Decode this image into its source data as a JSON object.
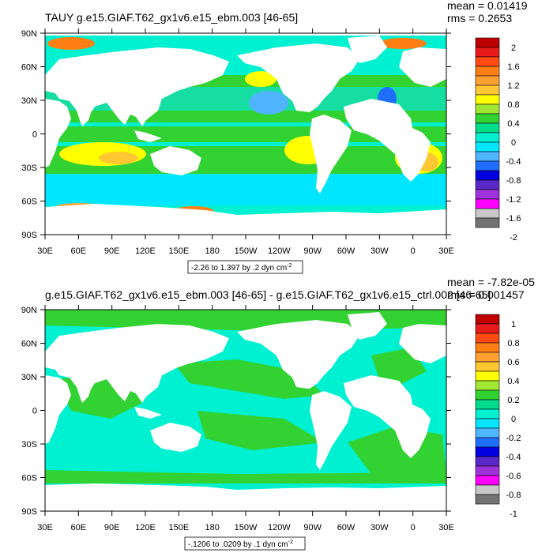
{
  "chart_data": [
    {
      "type": "heatmap",
      "title": "TAUY g.e15.GIAF.T62_gx1v6.e15_ebm.003 [46-65]",
      "stats": [
        "mean = 0.01419",
        "rms = 0.2653"
      ],
      "x_ticks": [
        "30E",
        "60E",
        "90E",
        "120E",
        "150E",
        "180",
        "150W",
        "120W",
        "90W",
        "60W",
        "30W",
        "0",
        "30E"
      ],
      "y_ticks": [
        "90N",
        "60N",
        "30N",
        "0",
        "30S",
        "60S",
        "90S"
      ],
      "xlim": [
        30,
        390
      ],
      "ylim": [
        -90,
        90
      ],
      "contour_info": "-2.26 to 1.397 by .2 dyn cm",
      "contour_unit_exp": "-2",
      "colorbar_labels": [
        "2",
        "1.6",
        "1.2",
        "0.8",
        "0.4",
        "0",
        "-0.4",
        "-0.8",
        "-1.2",
        "-1.6",
        "-2"
      ],
      "colorbar_colors": [
        "#bf0000",
        "#e81a1a",
        "#ff4a14",
        "#ff7f14",
        "#ffa033",
        "#ffc832",
        "#ffff00",
        "#a0e632",
        "#32d232",
        "#00dc8c",
        "#00f0d2",
        "#00e6ff",
        "#50b4ff",
        "#1e6eff",
        "#0000e1",
        "#5a28c8",
        "#a032dc",
        "#ff00ff",
        "#c8c8c8",
        "#737373"
      ]
    },
    {
      "type": "heatmap",
      "title": "g.e15.GIAF.T62_gx1v6.e15_ebm.003 [46-65] - g.e15.GIAF.T62_gx1v6.e15_ctrl.002 [46-65]",
      "stats": [
        "mean = -7.82e-05",
        "rms = 0.001457"
      ],
      "x_ticks": [
        "30E",
        "60E",
        "90E",
        "120E",
        "150E",
        "180",
        "150W",
        "120W",
        "90W",
        "60W",
        "30W",
        "0",
        "30E"
      ],
      "y_ticks": [
        "90N",
        "60N",
        "30N",
        "0",
        "30S",
        "60S",
        "90S"
      ],
      "xlim": [
        30,
        390
      ],
      "ylim": [
        -90,
        90
      ],
      "contour_info": "-.1206 to .0209 by .1 dyn cm",
      "contour_unit_exp": "-2",
      "colorbar_labels": [
        "1",
        "0.8",
        "0.6",
        "0.4",
        "0.2",
        "0",
        "-0.2",
        "-0.4",
        "-0.6",
        "-0.8",
        "-1"
      ],
      "colorbar_colors": [
        "#bf0000",
        "#e81a1a",
        "#ff4a14",
        "#ff7f14",
        "#ffa033",
        "#ffc832",
        "#ffff00",
        "#a0e632",
        "#32d232",
        "#00dc8c",
        "#00f0d2",
        "#00e6ff",
        "#50b4ff",
        "#1e6eff",
        "#0000e1",
        "#5a28c8",
        "#a032dc",
        "#ff00ff",
        "#c8c8c8",
        "#737373"
      ]
    }
  ],
  "colors": {
    "ocean_zero_band": "#00f0d2",
    "ocean_weak_pos": "#32d232",
    "land": "#ffffff",
    "frame": "#000000"
  }
}
